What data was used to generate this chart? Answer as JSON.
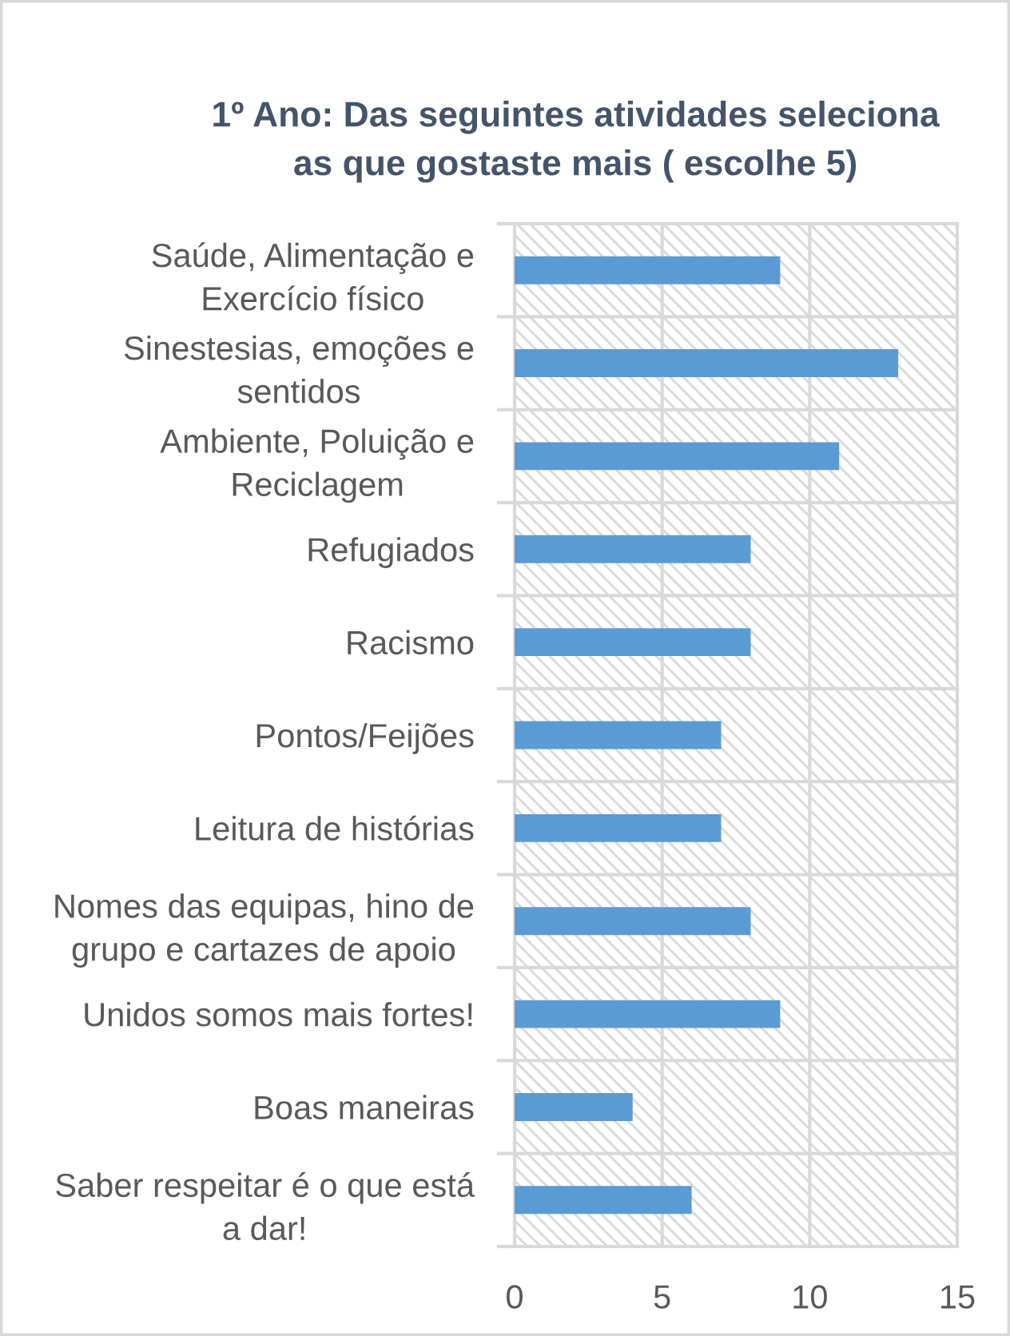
{
  "chart_data": {
    "type": "bar",
    "orientation": "horizontal",
    "title": "1º Ano: Das seguintes atividades seleciona\nas que gostaste mais ( escolhe 5)",
    "categories": [
      "Saúde, Alimentação e\nExercício físico",
      "Sinestesias, emoções e\nsentidos",
      "Ambiente, Poluição e\nReciclagem",
      "Refugiados",
      "Racismo",
      "Pontos/Feijões",
      "Leitura de histórias",
      "Nomes das equipas, hino de\ngrupo e cartazes de apoio",
      "Unidos somos mais fortes!",
      "Boas maneiras",
      "Saber respeitar é o que está\na dar!"
    ],
    "values": [
      9,
      13,
      11,
      8,
      8,
      7,
      7,
      8,
      9,
      4,
      6
    ],
    "color": "#5b9bd5",
    "xlim": [
      0,
      15
    ],
    "xticks": [
      0,
      5,
      10,
      15
    ],
    "grid": true
  }
}
